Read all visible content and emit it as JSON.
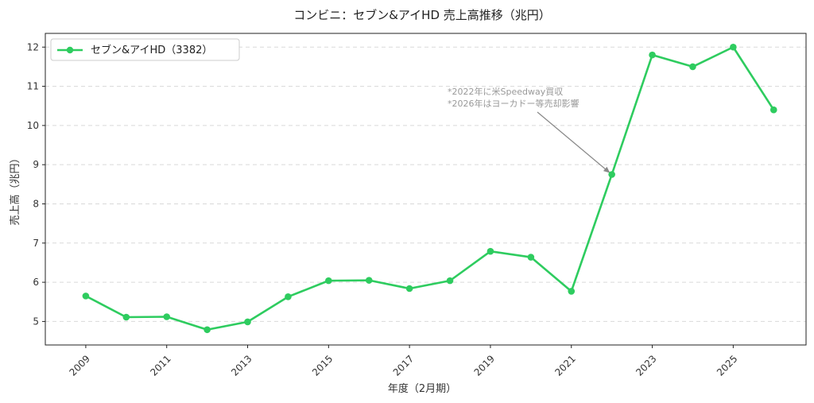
{
  "chart_data": {
    "type": "line",
    "title": "コンビニ：セブン&アイHD 売上高推移（兆円）",
    "xlabel": "年度（2月期）",
    "ylabel": "売上高（兆円）",
    "xlim": [
      2008.0,
      2026.8
    ],
    "ylim": [
      4.4,
      12.35
    ],
    "x_ticks": [
      "2009",
      "2011",
      "2013",
      "2015",
      "2017",
      "2019",
      "2021",
      "2023",
      "2025"
    ],
    "y_ticks": [
      "5",
      "6",
      "7",
      "8",
      "9",
      "10",
      "11",
      "12"
    ],
    "grid": true,
    "legend_position": "top-left",
    "series": [
      {
        "name": "セブン&アイHD（3382）",
        "color": "#2ecc5f",
        "x": [
          2009,
          2010,
          2011,
          2012,
          2013,
          2014,
          2015,
          2016,
          2017,
          2018,
          2019,
          2020,
          2021,
          2022,
          2023,
          2024,
          2025,
          2026
        ],
        "values": [
          5.65,
          5.11,
          5.12,
          4.79,
          4.99,
          5.63,
          6.04,
          6.05,
          5.84,
          6.04,
          6.79,
          6.64,
          5.77,
          8.75,
          11.8,
          11.5,
          12.0,
          10.4
        ]
      }
    ],
    "annotation": {
      "lines": [
        "*2022年に米Speedway買収",
        "*2026年はヨーカドー等売却影響"
      ],
      "target": {
        "x": 2022,
        "y": 8.75
      }
    }
  }
}
